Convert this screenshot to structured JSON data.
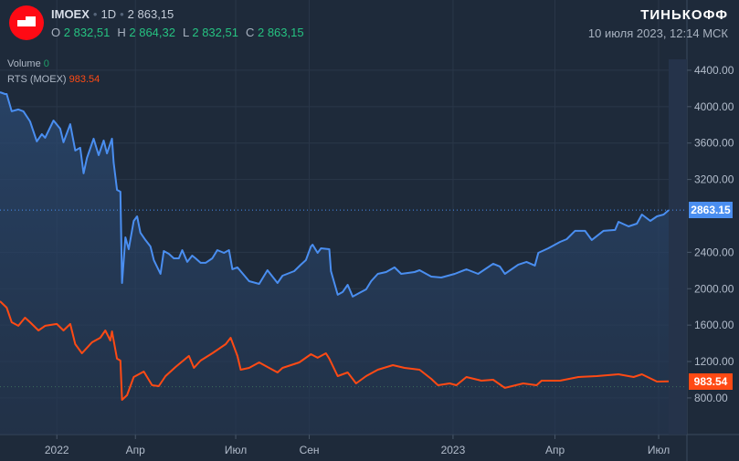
{
  "header": {
    "symbol": "IMOEX",
    "interval": "1D",
    "last_price": "2 863,15",
    "ohlc": {
      "o_label": "O",
      "o_value": "2 832,51",
      "h_label": "H",
      "h_value": "2 864,32",
      "l_label": "L",
      "l_value": "2 832,51",
      "c_label": "C",
      "c_value": "2 863,15"
    },
    "brand": "ТИНЬКОФФ",
    "datetime": "10 июля 2023, 12:14 МСК"
  },
  "legend": {
    "volume_label": "Volume",
    "volume_value": "0",
    "rts_label": "RTS (MOEX)",
    "rts_value": "983.54"
  },
  "colors": {
    "imoex": "#4a8ef0",
    "rts": "#ff4a14",
    "background": "#1e2a3a",
    "grid": "#2a3749",
    "up": "#26c281"
  },
  "chart_data": {
    "type": "line",
    "xlabel": "",
    "ylabel": "",
    "x_unit": "trading day index",
    "xlim": [
      0,
      400
    ],
    "ylim": [
      398,
      4620
    ],
    "grid": true,
    "x_ticks": [
      {
        "x": 34,
        "label": "2022"
      },
      {
        "x": 81,
        "label": "Апр"
      },
      {
        "x": 141,
        "label": "Июл"
      },
      {
        "x": 185,
        "label": "Сен"
      },
      {
        "x": 271,
        "label": "2023"
      },
      {
        "x": 332,
        "label": "Апр"
      },
      {
        "x": 394,
        "label": "Июл"
      }
    ],
    "y_ticks": [
      "800.00",
      "1200.00",
      "1600.00",
      "2000.00",
      "2400.00",
      "3200.00",
      "3600.00",
      "4000.00",
      "4400.00"
    ],
    "y_tick_values": [
      800,
      1200,
      1600,
      2000,
      2400,
      3200,
      3600,
      4000,
      4400
    ],
    "series": [
      {
        "name": "IMOEX",
        "last_label": "2863.15",
        "last": 2863.15,
        "points": [
          [
            0,
            4159
          ],
          [
            3,
            4139
          ],
          [
            4,
            4139
          ],
          [
            7,
            3949
          ],
          [
            11,
            3969
          ],
          [
            14,
            3949
          ],
          [
            18,
            3838
          ],
          [
            22,
            3618
          ],
          [
            25,
            3698
          ],
          [
            27,
            3658
          ],
          [
            32,
            3848
          ],
          [
            36,
            3758
          ],
          [
            38,
            3608
          ],
          [
            42,
            3808
          ],
          [
            45,
            3518
          ],
          [
            48,
            3548
          ],
          [
            50,
            3267
          ],
          [
            52,
            3437
          ],
          [
            56,
            3648
          ],
          [
            59,
            3467
          ],
          [
            62,
            3628
          ],
          [
            64,
            3487
          ],
          [
            67,
            3648
          ],
          [
            68,
            3387
          ],
          [
            70,
            3086
          ],
          [
            72,
            3066
          ],
          [
            73,
            2063
          ],
          [
            75,
            2564
          ],
          [
            77,
            2434
          ],
          [
            80,
            2745
          ],
          [
            82,
            2795
          ],
          [
            84,
            2615
          ],
          [
            87,
            2535
          ],
          [
            90,
            2464
          ],
          [
            92,
            2314
          ],
          [
            96,
            2163
          ],
          [
            98,
            2414
          ],
          [
            101,
            2384
          ],
          [
            104,
            2334
          ],
          [
            107,
            2334
          ],
          [
            109,
            2424
          ],
          [
            112,
            2294
          ],
          [
            115,
            2364
          ],
          [
            117,
            2334
          ],
          [
            120,
            2284
          ],
          [
            123,
            2284
          ],
          [
            127,
            2334
          ],
          [
            130,
            2424
          ],
          [
            134,
            2394
          ],
          [
            137,
            2424
          ],
          [
            139,
            2214
          ],
          [
            142,
            2234
          ],
          [
            149,
            2083
          ],
          [
            155,
            2053
          ],
          [
            160,
            2203
          ],
          [
            166,
            2063
          ],
          [
            169,
            2143
          ],
          [
            176,
            2193
          ],
          [
            180,
            2264
          ],
          [
            183,
            2314
          ],
          [
            186,
            2464
          ],
          [
            187,
            2484
          ],
          [
            190,
            2394
          ],
          [
            192,
            2444
          ],
          [
            197,
            2434
          ],
          [
            198,
            2193
          ],
          [
            202,
            1933
          ],
          [
            205,
            1963
          ],
          [
            208,
            2043
          ],
          [
            211,
            1913
          ],
          [
            216,
            1963
          ],
          [
            219,
            1993
          ],
          [
            222,
            2083
          ],
          [
            226,
            2163
          ],
          [
            231,
            2183
          ],
          [
            236,
            2234
          ],
          [
            240,
            2163
          ],
          [
            248,
            2183
          ],
          [
            251,
            2203
          ],
          [
            258,
            2133
          ],
          [
            264,
            2123
          ],
          [
            272,
            2163
          ],
          [
            279,
            2213
          ],
          [
            286,
            2163
          ],
          [
            295,
            2274
          ],
          [
            299,
            2244
          ],
          [
            302,
            2163
          ],
          [
            310,
            2264
          ],
          [
            315,
            2294
          ],
          [
            320,
            2254
          ],
          [
            322,
            2394
          ],
          [
            328,
            2444
          ],
          [
            335,
            2514
          ],
          [
            339,
            2544
          ],
          [
            344,
            2635
          ],
          [
            350,
            2635
          ],
          [
            354,
            2535
          ],
          [
            361,
            2635
          ],
          [
            368,
            2645
          ],
          [
            370,
            2735
          ],
          [
            376,
            2685
          ],
          [
            381,
            2715
          ],
          [
            384,
            2815
          ],
          [
            389,
            2745
          ],
          [
            393,
            2795
          ],
          [
            397,
            2815
          ],
          [
            400,
            2863
          ]
        ]
      },
      {
        "name": "RTS (MOEX)",
        "last_label": "983.54",
        "last": 983.54,
        "points": [
          [
            0,
            1862
          ],
          [
            4,
            1792
          ],
          [
            7,
            1632
          ],
          [
            11,
            1592
          ],
          [
            15,
            1682
          ],
          [
            18,
            1632
          ],
          [
            23,
            1541
          ],
          [
            27,
            1592
          ],
          [
            34,
            1612
          ],
          [
            38,
            1541
          ],
          [
            42,
            1612
          ],
          [
            45,
            1391
          ],
          [
            49,
            1291
          ],
          [
            55,
            1411
          ],
          [
            60,
            1461
          ],
          [
            63,
            1541
          ],
          [
            66,
            1431
          ],
          [
            67,
            1531
          ],
          [
            70,
            1231
          ],
          [
            72,
            1210
          ],
          [
            73,
            779
          ],
          [
            76,
            830
          ],
          [
            80,
            1030
          ],
          [
            86,
            1090
          ],
          [
            91,
            940
          ],
          [
            95,
            930
          ],
          [
            99,
            1040
          ],
          [
            105,
            1140
          ],
          [
            113,
            1261
          ],
          [
            116,
            1130
          ],
          [
            120,
            1210
          ],
          [
            127,
            1291
          ],
          [
            135,
            1391
          ],
          [
            138,
            1461
          ],
          [
            142,
            1261
          ],
          [
            144,
            1110
          ],
          [
            149,
            1130
          ],
          [
            155,
            1190
          ],
          [
            160,
            1140
          ],
          [
            166,
            1080
          ],
          [
            169,
            1130
          ],
          [
            179,
            1190
          ],
          [
            186,
            1281
          ],
          [
            190,
            1241
          ],
          [
            195,
            1291
          ],
          [
            197,
            1231
          ],
          [
            202,
            1040
          ],
          [
            208,
            1080
          ],
          [
            213,
            960
          ],
          [
            219,
            1040
          ],
          [
            226,
            1110
          ],
          [
            235,
            1160
          ],
          [
            242,
            1130
          ],
          [
            251,
            1110
          ],
          [
            258,
            1010
          ],
          [
            262,
            940
          ],
          [
            269,
            960
          ],
          [
            273,
            940
          ],
          [
            279,
            1030
          ],
          [
            288,
            990
          ],
          [
            295,
            1000
          ],
          [
            302,
            910
          ],
          [
            313,
            960
          ],
          [
            321,
            940
          ],
          [
            324,
            990
          ],
          [
            335,
            990
          ],
          [
            346,
            1030
          ],
          [
            357,
            1040
          ],
          [
            370,
            1060
          ],
          [
            379,
            1030
          ],
          [
            384,
            1060
          ],
          [
            393,
            980
          ],
          [
            400,
            983
          ]
        ]
      }
    ]
  }
}
